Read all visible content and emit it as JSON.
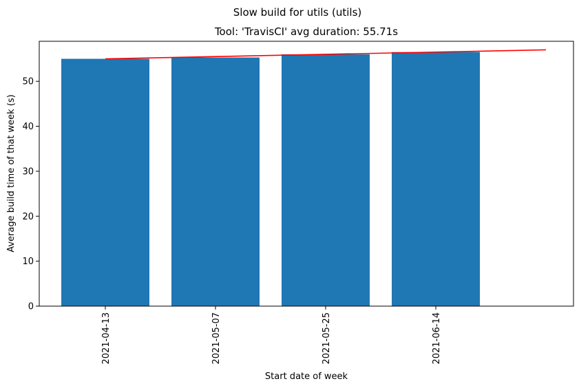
{
  "chart_data": {
    "type": "bar",
    "suptitle": "Slow build for utils (utils)",
    "title": "Tool: 'TravisCI' avg duration: 55.71s",
    "xlabel": "Start date of week",
    "ylabel": "Average build time of that week (s)",
    "categories": [
      "2021-04-13",
      "2021-05-07",
      "2021-05-25",
      "2021-06-14"
    ],
    "values": [
      55.0,
      55.3,
      56.0,
      56.5
    ],
    "ylim": [
      0,
      58.9
    ],
    "yticks": [
      0,
      10,
      20,
      30,
      40,
      50
    ],
    "bar_color": "#1f77b4",
    "trend_line": {
      "color": "#ff0000",
      "x": [
        0,
        4
      ],
      "y": [
        55.0,
        57.0
      ]
    },
    "grid": false,
    "legend": "none"
  }
}
